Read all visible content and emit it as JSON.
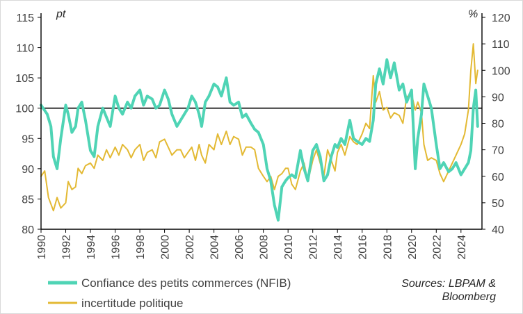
{
  "chart_data": {
    "type": "line",
    "title": "",
    "left_axis": {
      "unit": "pt",
      "ylim": [
        80,
        115
      ],
      "ticks": [
        80,
        85,
        90,
        95,
        100,
        105,
        110,
        115
      ]
    },
    "right_axis": {
      "unit": "%",
      "ylim": [
        40,
        120
      ],
      "ticks": [
        40,
        50,
        60,
        70,
        80,
        90,
        100,
        110,
        120
      ]
    },
    "x_axis": {
      "xlim": [
        1990,
        2025.7
      ],
      "tick_labels": [
        "1990",
        "1992",
        "1994",
        "1996",
        "1998",
        "2000",
        "2002",
        "2004",
        "2006",
        "2008",
        "2010",
        "2012",
        "2014",
        "2016",
        "2018",
        "2020",
        "2022",
        "2024"
      ]
    },
    "reference_line": {
      "axis": "left",
      "value": 100
    },
    "series": [
      {
        "name": "Confiance des petits commerces (NFIB)",
        "axis": "left",
        "color": "#4fd4b5",
        "x": [
          1990.0,
          1990.5,
          1990.8,
          1991.0,
          1991.3,
          1991.6,
          1992.0,
          1992.2,
          1992.5,
          1992.8,
          1993.0,
          1993.3,
          1993.6,
          1994.0,
          1994.3,
          1994.6,
          1995.0,
          1995.3,
          1995.6,
          1996.0,
          1996.3,
          1996.6,
          1997.0,
          1997.3,
          1997.6,
          1998.0,
          1998.3,
          1998.6,
          1999.0,
          1999.3,
          1999.6,
          2000.0,
          2000.3,
          2000.6,
          2001.0,
          2001.3,
          2001.6,
          2001.9,
          2002.2,
          2002.5,
          2002.8,
          2003.0,
          2003.3,
          2003.6,
          2004.0,
          2004.3,
          2004.6,
          2005.0,
          2005.3,
          2005.6,
          2006.0,
          2006.3,
          2006.6,
          2007.0,
          2007.3,
          2007.6,
          2008.0,
          2008.3,
          2008.6,
          2008.9,
          2009.2,
          2009.5,
          2009.8,
          2010.0,
          2010.3,
          2010.6,
          2011.0,
          2011.3,
          2011.6,
          2012.0,
          2012.3,
          2012.6,
          2012.9,
          2013.2,
          2013.5,
          2013.8,
          2014.0,
          2014.3,
          2014.6,
          2015.0,
          2015.3,
          2015.6,
          2016.0,
          2016.3,
          2016.6,
          2016.9,
          2017.1,
          2017.4,
          2017.7,
          2018.0,
          2018.3,
          2018.6,
          2019.0,
          2019.3,
          2019.6,
          2020.0,
          2020.3,
          2020.5,
          2020.8,
          2021.0,
          2021.3,
          2021.6,
          2022.0,
          2022.3,
          2022.6,
          2023.0,
          2023.3,
          2023.6,
          2024.0,
          2024.3,
          2024.6,
          2024.8,
          2025.0,
          2025.2,
          2025.35
        ],
        "values": [
          100.5,
          99,
          97,
          92,
          90,
          95,
          100.5,
          99,
          96,
          97,
          100,
          101,
          98,
          93,
          92,
          97,
          100,
          98.5,
          97,
          102,
          100,
          99,
          101,
          100,
          102,
          103,
          100.5,
          102,
          101.5,
          100,
          100.5,
          103,
          101.5,
          99,
          97,
          98,
          99,
          100,
          102,
          101,
          99,
          97,
          101,
          102,
          104,
          103.5,
          102,
          105,
          101,
          100.5,
          101,
          98.5,
          99,
          97.5,
          96.5,
          96,
          94,
          90,
          88,
          84,
          81.5,
          87,
          88,
          88.5,
          89,
          88.5,
          93,
          90,
          88,
          93,
          94,
          92,
          88,
          89,
          92,
          94,
          93.5,
          95,
          94,
          98,
          95,
          94.5,
          94,
          95,
          94.5,
          98,
          104,
          106.5,
          104,
          108,
          105,
          107.5,
          103,
          104,
          101,
          103,
          90,
          95,
          99,
          104,
          102,
          100,
          94,
          90,
          91,
          89.5,
          90,
          91,
          89,
          90,
          91,
          93,
          100,
          103,
          97
        ]
      },
      {
        "name": "incertitude politique",
        "axis": "right",
        "color": "#e3b933",
        "x": [
          1990.0,
          1990.3,
          1990.6,
          1991.0,
          1991.3,
          1991.6,
          1992.0,
          1992.2,
          1992.5,
          1992.8,
          1993.0,
          1993.3,
          1993.6,
          1994.0,
          1994.3,
          1994.6,
          1995.0,
          1995.3,
          1995.6,
          1996.0,
          1996.3,
          1996.6,
          1997.0,
          1997.3,
          1997.6,
          1998.0,
          1998.3,
          1998.6,
          1999.0,
          1999.3,
          1999.6,
          2000.0,
          2000.3,
          2000.6,
          2001.0,
          2001.3,
          2001.6,
          2001.9,
          2002.2,
          2002.5,
          2002.8,
          2003.0,
          2003.3,
          2003.6,
          2004.0,
          2004.3,
          2004.6,
          2005.0,
          2005.3,
          2005.6,
          2006.0,
          2006.3,
          2006.6,
          2007.0,
          2007.3,
          2007.6,
          2008.0,
          2008.3,
          2008.6,
          2008.9,
          2009.2,
          2009.5,
          2009.8,
          2010.0,
          2010.3,
          2010.6,
          2011.0,
          2011.3,
          2011.6,
          2012.0,
          2012.3,
          2012.6,
          2012.9,
          2013.2,
          2013.5,
          2013.8,
          2014.0,
          2014.3,
          2014.6,
          2015.0,
          2015.3,
          2015.6,
          2016.0,
          2016.3,
          2016.6,
          2016.9,
          2017.1,
          2017.4,
          2017.7,
          2018.0,
          2018.3,
          2018.6,
          2019.0,
          2019.3,
          2019.6,
          2020.0,
          2020.3,
          2020.5,
          2020.8,
          2021.0,
          2021.3,
          2021.6,
          2022.0,
          2022.3,
          2022.6,
          2023.0,
          2023.3,
          2023.6,
          2024.0,
          2024.3,
          2024.6,
          2024.8,
          2025.0,
          2025.2,
          2025.35
        ],
        "values": [
          60,
          62,
          52,
          47,
          52,
          48,
          50,
          58,
          55,
          56,
          63,
          61,
          64,
          65,
          63,
          68,
          66,
          70,
          67,
          71,
          68,
          72,
          70,
          67,
          70,
          72,
          66,
          69,
          70,
          67,
          73,
          74,
          71,
          68,
          70,
          70,
          67,
          69,
          71,
          66,
          72,
          68,
          65,
          72,
          70,
          76,
          72,
          77,
          72,
          75,
          74,
          68,
          71,
          71,
          70,
          63,
          60,
          58,
          60,
          55,
          60,
          61,
          63,
          63,
          57,
          55,
          62,
          65,
          58,
          66,
          70,
          65,
          60,
          70,
          66,
          62,
          69,
          72,
          68,
          75,
          73,
          72,
          76,
          80,
          78,
          98,
          88,
          92,
          85,
          86,
          82,
          84,
          83,
          80,
          90,
          91,
          85,
          88,
          84,
          72,
          66,
          67,
          66,
          61,
          58,
          62,
          65,
          68,
          72,
          76,
          85,
          100,
          110,
          95,
          100
        ]
      }
    ],
    "legend": [
      {
        "label": "Confiance des petits commerces (NFIB)",
        "color": "#4fd4b5"
      },
      {
        "label": "incertitude politique",
        "color": "#e3b933"
      }
    ],
    "source": {
      "line1": "Sources: LBPAM &",
      "line2": "Bloomberg"
    }
  }
}
